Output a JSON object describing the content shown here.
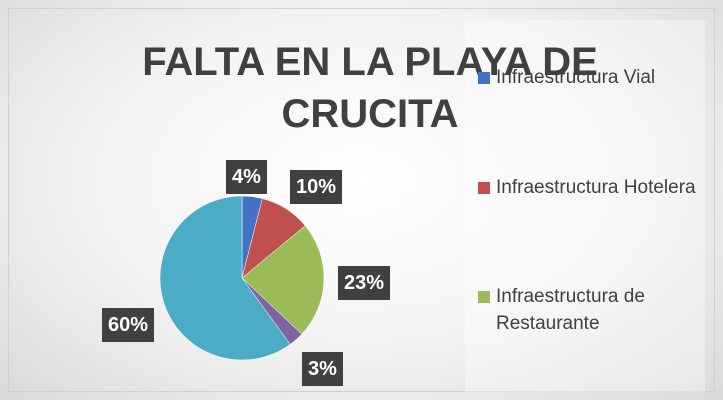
{
  "chart_data": {
    "type": "pie",
    "title": "FALTA EN LA PLAYA DE CRUCITA",
    "categories": [
      "Infraestructura Vial",
      "Infraestructura Hotelera",
      "Infraestructura de Restaurante",
      null,
      null
    ],
    "values": [
      4,
      10,
      23,
      3,
      60
    ],
    "value_labels": [
      "4%",
      "10%",
      "23%",
      "3%",
      "60%"
    ],
    "colors": [
      "#4472c4",
      "#c0504d",
      "#9bbb59",
      "#8064a2",
      "#4bacc6"
    ]
  }
}
